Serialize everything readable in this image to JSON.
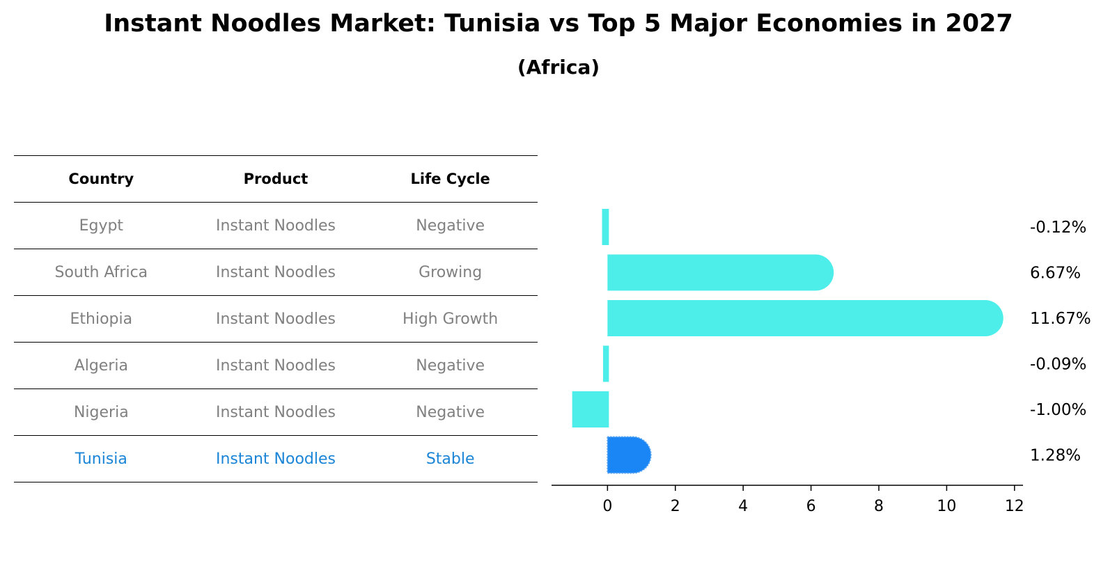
{
  "header": {
    "title": "Instant Noodles Market: Tunisia vs Top 5 Major Economies in 2027",
    "subtitle": "(Africa)"
  },
  "table": {
    "columns": [
      "Country",
      "Product",
      "Life Cycle"
    ],
    "rows": [
      {
        "country": "Egypt",
        "product": "Instant Noodles",
        "life_cycle": "Negative",
        "highlight": false
      },
      {
        "country": "South Africa",
        "product": "Instant Noodles",
        "life_cycle": "Growing",
        "highlight": false
      },
      {
        "country": "Ethiopia",
        "product": "Instant Noodles",
        "life_cycle": "High Growth",
        "highlight": false
      },
      {
        "country": "Algeria",
        "product": "Instant Noodles",
        "life_cycle": "Negative",
        "highlight": false
      },
      {
        "country": "Nigeria",
        "product": "Instant Noodles",
        "life_cycle": "Negative",
        "highlight": false
      },
      {
        "country": "Tunisia",
        "product": "Instant Noodles",
        "life_cycle": "Stable",
        "highlight": true
      }
    ]
  },
  "colors": {
    "bar": "#4deeea",
    "highlight_bar": "#1a85f5",
    "highlight_text": "#1a85d6",
    "muted_text": "#808080"
  },
  "chart_data": {
    "type": "bar",
    "orientation": "horizontal",
    "categories": [
      "Egypt",
      "South Africa",
      "Ethiopia",
      "Algeria",
      "Nigeria",
      "Tunisia"
    ],
    "values": [
      -0.12,
      6.67,
      11.67,
      -0.09,
      -1.0,
      1.28
    ],
    "value_labels": [
      "-0.12%",
      "6.67%",
      "11.67%",
      "-0.09%",
      "-1.00%",
      "1.28%"
    ],
    "highlight_category": "Tunisia",
    "xlim": [
      -1.65,
      12.25
    ],
    "xticks": [
      0,
      2,
      4,
      6,
      8,
      10,
      12
    ],
    "grid": false
  }
}
